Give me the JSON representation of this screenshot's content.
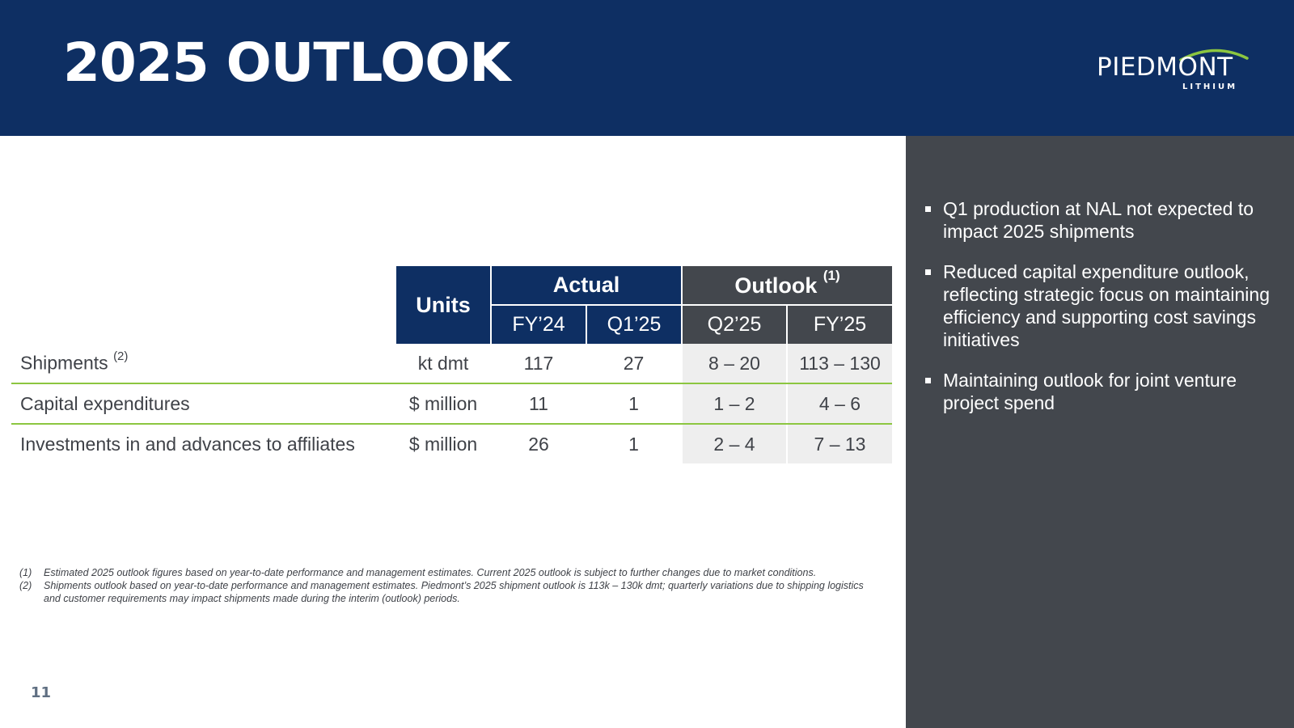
{
  "header": {
    "title": "2025 OUTLOOK",
    "logo_text": "PIEDMONT",
    "logo_subtext": "LITHIUM",
    "colors": {
      "navy": "#0e2f63",
      "accent_green": "#8cc640",
      "panel_grey": "#43474d"
    }
  },
  "table": {
    "units_header": "Units",
    "actual_header": "Actual",
    "outlook_header": "Outlook",
    "outlook_note": "(1)",
    "subheaders": [
      "FY’24",
      "Q1’25",
      "Q2’25",
      "FY’25"
    ],
    "rows": [
      {
        "label": "Shipments",
        "note": "(2)",
        "units": "kt dmt",
        "fy24": "117",
        "q125": "27",
        "q225": "8 – 20",
        "fy25": "113 – 130"
      },
      {
        "label": "Capital expenditures",
        "note": "",
        "units": "$ million",
        "fy24": "11",
        "q125": "1",
        "q225": "1 – 2",
        "fy25": "4 – 6"
      },
      {
        "label": "Investments in and advances to affiliates",
        "note": "",
        "units": "$ million",
        "fy24": "26",
        "q125": "1",
        "q225": "2 – 4",
        "fy25": "7 – 13"
      }
    ]
  },
  "side_panel": {
    "bullets": [
      "Q1 production at NAL not expected to impact 2025 shipments",
      "Reduced capital expenditure outlook, reflecting strategic focus on maintaining efficiency and supporting cost savings initiatives",
      "Maintaining outlook for joint venture project spend"
    ]
  },
  "footnotes": [
    {
      "num": "(1)",
      "text": "Estimated 2025 outlook figures based on year-to-date performance and management estimates. Current 2025 outlook is subject to further changes due to market conditions."
    },
    {
      "num": "(2)",
      "text": "Shipments outlook based on year-to-date performance and management estimates. Piedmont’s 2025 shipment outlook is 113k – 130k dmt; quarterly variations due to shipping logistics and customer requirements may impact shipments made during the interim (outlook) periods."
    }
  ],
  "page_number": "11"
}
